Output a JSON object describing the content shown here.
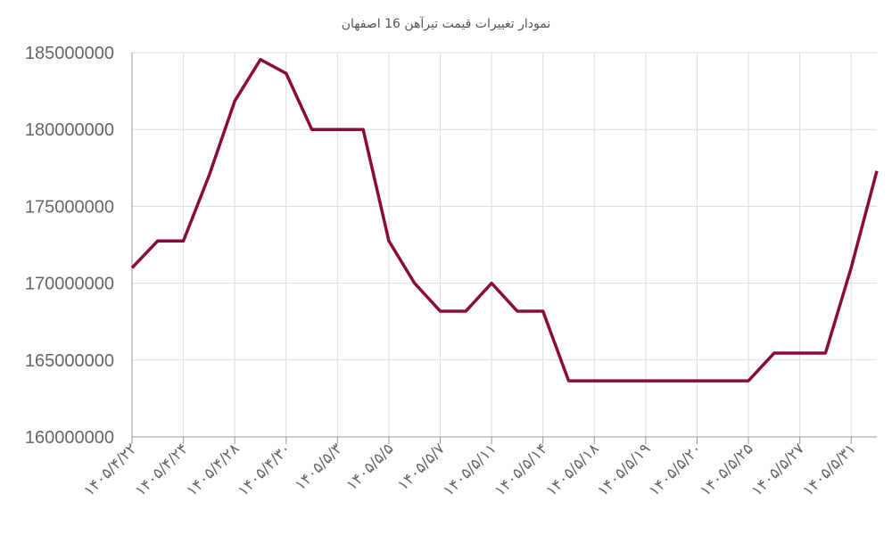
{
  "chart_data": {
    "type": "line",
    "title": "نمودار تغییرات قیمت تیرآهن 16 اصفهان",
    "categories": [
      "۱۴۰۵/۴/۲۲",
      null,
      "۱۴۰۵/۴/۲۴",
      null,
      "۱۴۰۵/۴/۲۸",
      null,
      "۱۴۰۵/۴/۳۰",
      null,
      "۱۴۰۵/۵/۳",
      null,
      "۱۴۰۵/۵/۵",
      null,
      "۱۴۰۵/۵/۷",
      null,
      "۱۴۰۵/۵/۱۱",
      null,
      "۱۴۰۵/۵/۱۴",
      null,
      "۱۴۰۵/۵/۱۸",
      null,
      "۱۴۰۵/۵/۱۹",
      null,
      "۱۴۰۵/۵/۲۰",
      null,
      "۱۴۰۵/۵/۲۵",
      null,
      "۱۴۰۵/۵/۲۷",
      null,
      "۱۴۰۵/۵/۳۱",
      null
    ],
    "series": [
      {
        "color": "#8b0a3c",
        "values": [
          171000000,
          172750000,
          172750000,
          177000000,
          181850000,
          184550000,
          183650000,
          180000000,
          180000000,
          180000000,
          172750000,
          170000000,
          168180000,
          168180000,
          170000000,
          168180000,
          168180000,
          163650000,
          163650000,
          163650000,
          163650000,
          163650000,
          163650000,
          163650000,
          163650000,
          165450000,
          165450000,
          165450000,
          171000000,
          177300000
        ]
      }
    ],
    "ylim": [
      160000000,
      185000000
    ],
    "yticks": [
      160000000,
      165000000,
      170000000,
      175000000,
      180000000,
      185000000
    ],
    "grid": true
  }
}
